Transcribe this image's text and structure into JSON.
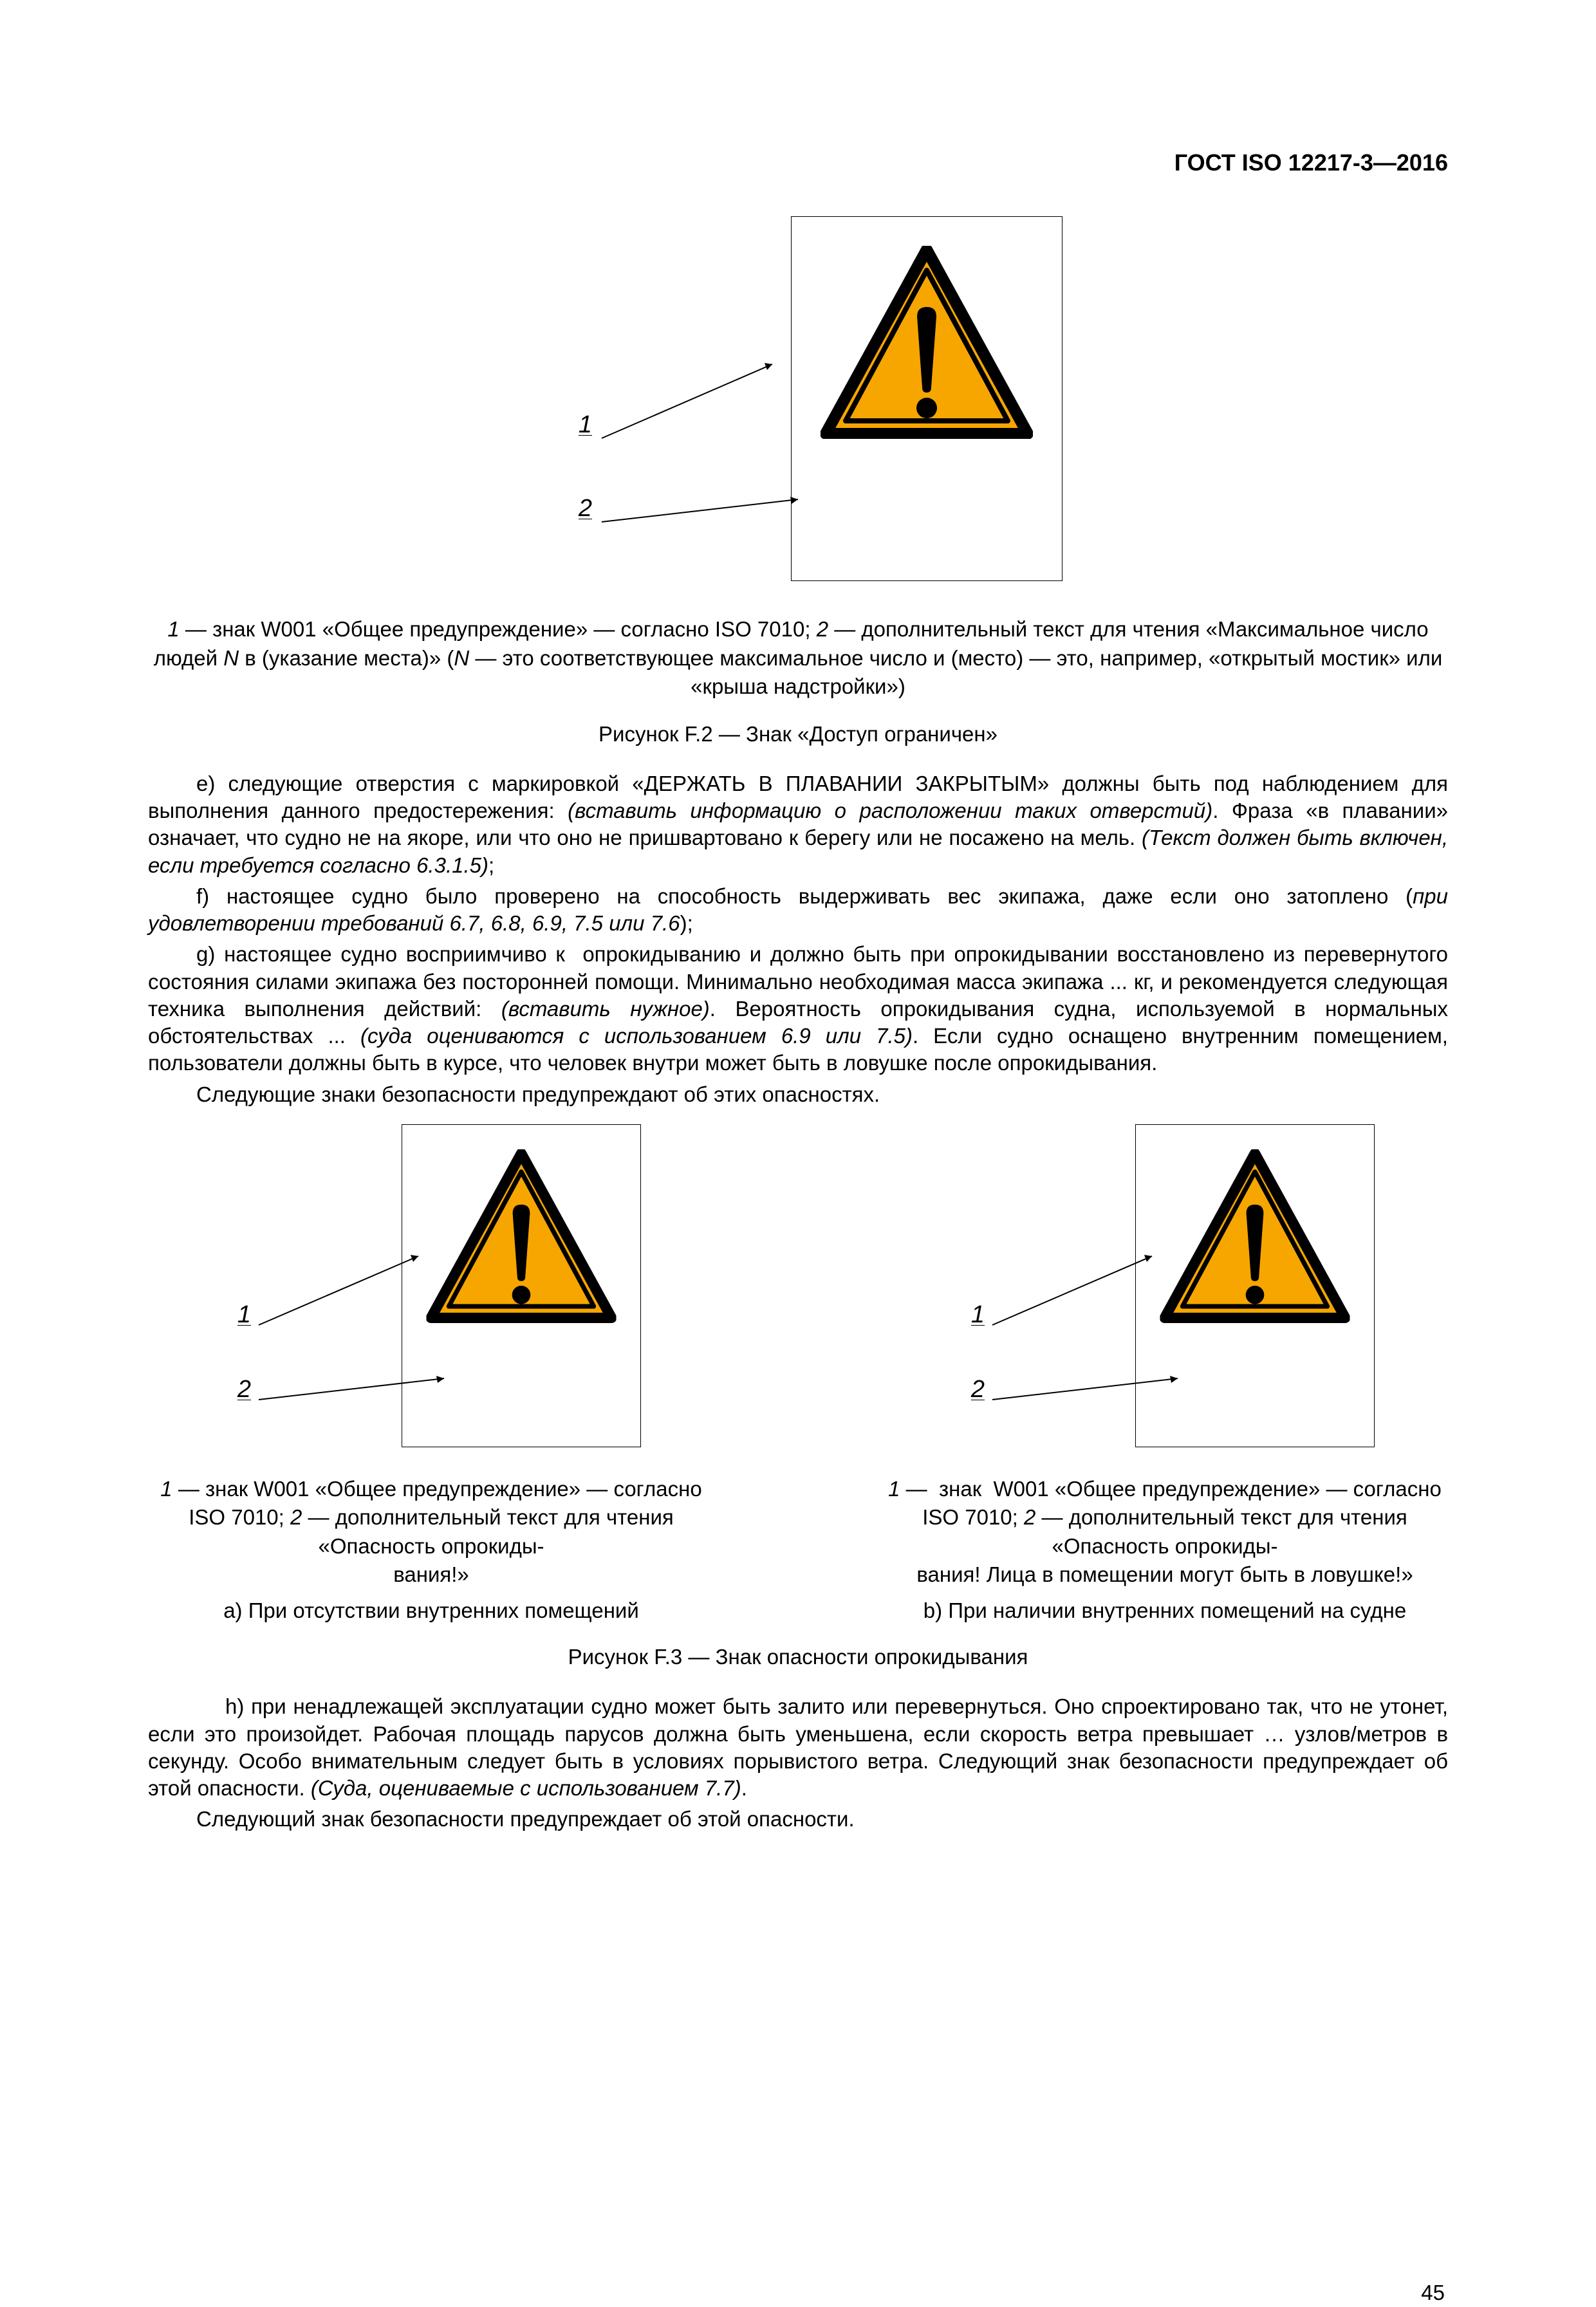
{
  "header": "ГОСТ ISO 12217-3—2016",
  "fig_f2": {
    "labels": {
      "one": "1",
      "two": "2"
    },
    "legend": "<span class='italic'>1</span> — знак W001 «Общее предупреждение» — согласно ISO 7010; <span class='italic'>2</span> — дополнительный текст для чтения «Максимальное число людей <span class='italic'>N</span> в (указание места)» (<span class='italic'>N</span> — это соответствующее максимальное число и (место) — это, например, «открытый мостик» или «крыша надстройки»)",
    "caption": "Рисунок F.2 — Знак «Доступ ограничен»"
  },
  "para_e": "e) следующие отверстия с маркировкой «ДЕРЖАТЬ В ПЛАВАНИИ ЗАКРЫТЫМ» должны быть под наблюдением для выполнения данного предостережения: <span class='italic'>(вставить информацию о расположении таких отверстий)</span>. Фраза «в плавании» означает, что судно не на якоре, или что оно не пришвартовано к берегу или не посажено на мель. <span class='italic'>(Текст должен быть включен, если требуется согласно 6.3.1.5)</span>;",
  "para_f": "f) настоящее судно было проверено на способность выдерживать вес экипажа, даже если оно затоплено (<span class='italic'>при удовлетворении требований 6.7, 6.8, 6.9, 7.5 или 7.6</span>);",
  "para_g": "g) настоящее судно восприимчиво к  опрокидыванию и должно быть при опрокидывании восстановлено из перевернутого состояния силами экипажа без посторонней помощи. Минимально необходимая масса экипажа ... кг, и рекомендуется следующая техника выполнения действий: <span class='italic'>(вставить нужное)</span>. Вероятность опрокидывания судна, используемой в нормальных обстоятельствах ... <span class='italic'>(суда оцениваются с использованием 6.9 или 7.5)</span>. Если судно оснащено внутренним помещением, пользователи должны быть в курсе, что человек внутри может быть в ловушке после опрокидывания.",
  "para_g_tail": "Следующие знаки безопасности предупреждают об этих опасностях.",
  "fig_f3": {
    "labels": {
      "one": "1",
      "two": "2"
    },
    "a_legend": "<span class='italic'>1</span> — знак W001 «Общее предупреждение» — согласно ISO 7010; <span class='italic'>2</span> — дополнительный текст для чтения «Опасность опрокиды-<br>вания!»",
    "a_sub": "a) При отсутствии внутренних помещений",
    "b_legend": "<span class='italic'>1</span> —  знак  W001 «Общее предупреждение» — согласно ISO 7010; <span class='italic'>2</span> — дополнительный текст для чтения «Опасность опрокиды-<br>вания! Лица в помещении могут быть в ловушке!»",
    "b_sub": "b) При наличии внутренних помещений на судне",
    "caption": "Рисунок F.3 — Знак опасности опрокидывания"
  },
  "para_h": "h) при ненадлежащей эксплуатации судно может быть залито или перевернуться. Оно спроектировано так, что не утонет, если это произойдет. Рабочая площадь парусов должна быть уменьшена, если скорость ветра превышает … узлов/метров в секунду. Особо внимательным следует быть в условиях порывистого ветра. Следующий знак безопасности предупреждает об этой опасности. <span class='italic'>(Суда, оцениваемые с использованием 7.7)</span>.",
  "para_h_tail": "Следующий знак безопасности предупреждает об этой опасности.",
  "pagenum": "45",
  "colors": {
    "triangle_fill": "#f7a600",
    "triangle_stroke": "#000000",
    "text": "#000000",
    "background": "#ffffff"
  }
}
